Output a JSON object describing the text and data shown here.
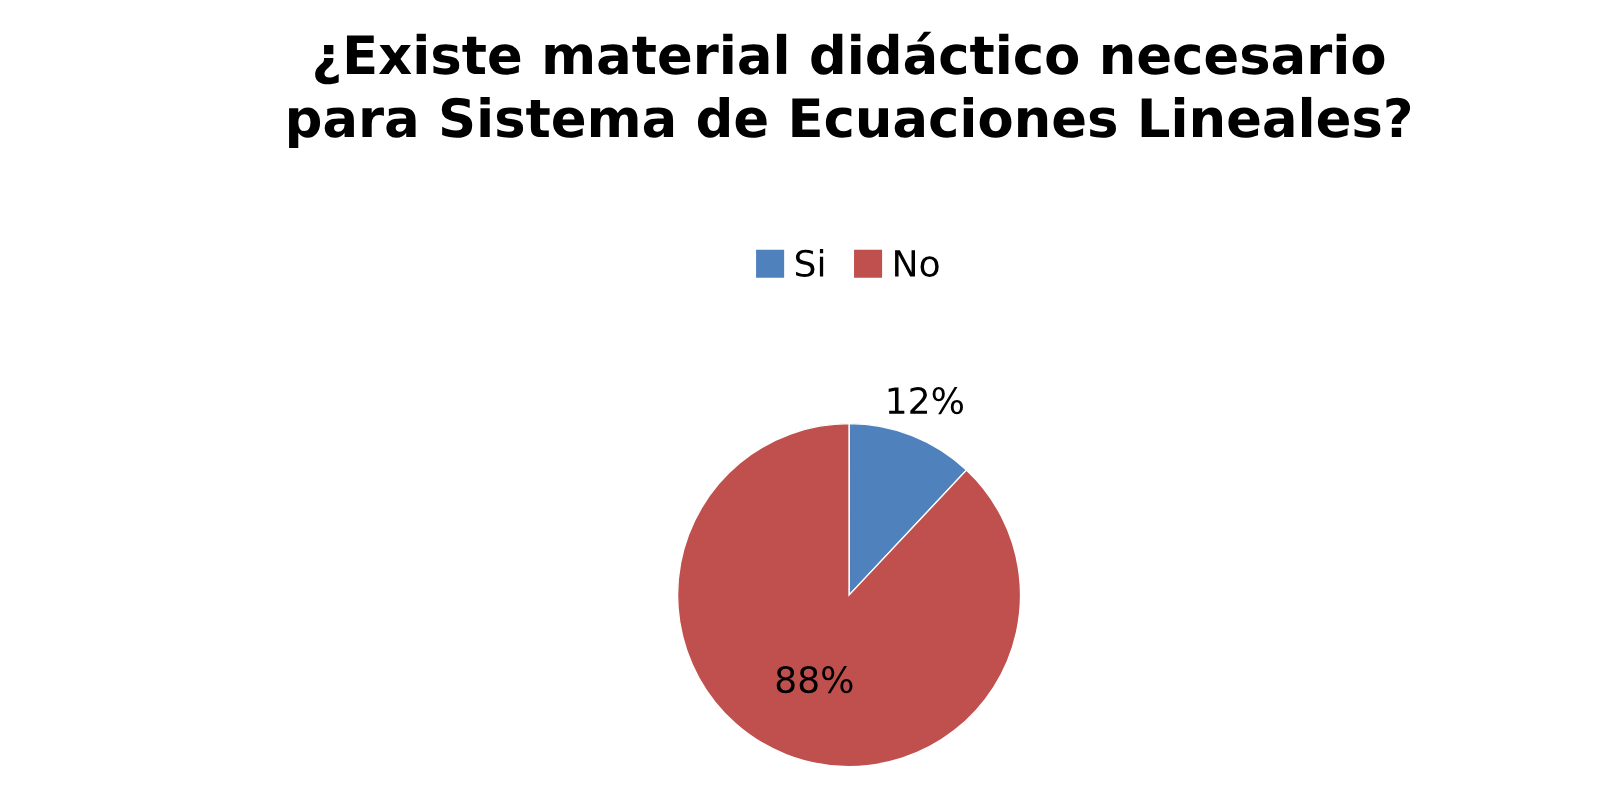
{
  "chart_data": {
    "type": "pie",
    "title": "¿Existe material didáctico necesario\npara Sistema de Ecuaciones Lineales?",
    "categories": [
      "Si",
      "No"
    ],
    "values": [
      12,
      88
    ],
    "colors": [
      "#4f81bd",
      "#c0504d"
    ],
    "value_labels": [
      "12%",
      "88%"
    ],
    "legend": "top"
  }
}
